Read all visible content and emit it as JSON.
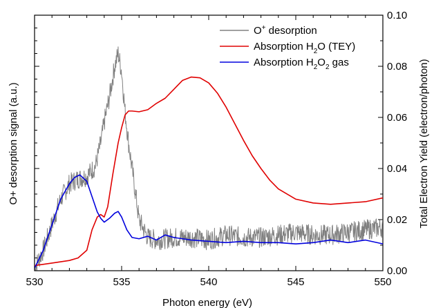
{
  "chart_data": {
    "type": "line",
    "title": "",
    "xlabel": "Photon energy (eV)",
    "ylabel_left": "O+ desorption signal (a.u.)",
    "ylabel_right": "Total Electron Yield (electron/photon)",
    "xlim": [
      530,
      550
    ],
    "ylim_right": [
      0.0,
      0.1
    ],
    "x_ticks": [
      530,
      535,
      540,
      545,
      550
    ],
    "x_tick_labels": [
      "530",
      "535",
      "540",
      "545",
      "550"
    ],
    "y_right_ticks": [
      0.0,
      0.02,
      0.04,
      0.06,
      0.08,
      0.1
    ],
    "y_right_tick_labels": [
      "0.00",
      "0.02",
      "0.04",
      "0.06",
      "0.08",
      "0.10"
    ],
    "legend_position": "top-right",
    "series": [
      {
        "key": "desorption",
        "color": "#808080",
        "axis": "left",
        "x": [
          530.0,
          530.5,
          531.0,
          531.5,
          532.0,
          532.5,
          533.0,
          533.5,
          533.8,
          534.0,
          534.3,
          534.6,
          534.8,
          535.0,
          535.2,
          535.4,
          535.6,
          535.8,
          536.0,
          536.5,
          537.0,
          538.0,
          539.0,
          540.0,
          541.0,
          542.0,
          543.0,
          544.0,
          545.0,
          546.0,
          547.0,
          548.0,
          549.0,
          550.0
        ],
        "y": [
          0.001,
          0.008,
          0.018,
          0.028,
          0.034,
          0.036,
          0.037,
          0.041,
          0.05,
          0.058,
          0.068,
          0.08,
          0.085,
          0.078,
          0.062,
          0.05,
          0.04,
          0.03,
          0.02,
          0.013,
          0.012,
          0.013,
          0.013,
          0.012,
          0.014,
          0.013,
          0.013,
          0.014,
          0.015,
          0.014,
          0.014,
          0.015,
          0.016,
          0.017
        ],
        "noise": 0.004
      },
      {
        "key": "h2o",
        "color": "#e00000",
        "axis": "right",
        "x": [
          530.0,
          531.0,
          532.0,
          532.5,
          533.0,
          533.3,
          533.6,
          533.8,
          534.0,
          534.2,
          534.5,
          534.8,
          535.0,
          535.2,
          535.4,
          535.6,
          536.0,
          536.5,
          537.0,
          537.5,
          538.0,
          538.5,
          539.0,
          539.5,
          540.0,
          540.5,
          541.0,
          541.5,
          542.0,
          542.5,
          543.0,
          543.5,
          544.0,
          545.0,
          546.0,
          547.0,
          548.0,
          549.0,
          550.0
        ],
        "y": [
          0.002,
          0.003,
          0.004,
          0.005,
          0.008,
          0.016,
          0.021,
          0.022,
          0.021,
          0.025,
          0.038,
          0.05,
          0.056,
          0.061,
          0.0625,
          0.0625,
          0.0622,
          0.063,
          0.0655,
          0.0675,
          0.071,
          0.0745,
          0.0758,
          0.0755,
          0.0735,
          0.0695,
          0.064,
          0.0575,
          0.051,
          0.045,
          0.04,
          0.0355,
          0.032,
          0.028,
          0.0265,
          0.026,
          0.0265,
          0.027,
          0.0285
        ]
      },
      {
        "key": "h2o2",
        "color": "#0000dd",
        "axis": "right",
        "x": [
          530.0,
          530.5,
          531.0,
          531.5,
          532.0,
          532.3,
          532.6,
          533.0,
          533.3,
          533.6,
          533.8,
          534.0,
          534.3,
          534.6,
          534.8,
          535.0,
          535.3,
          535.6,
          536.0,
          536.5,
          537.0,
          537.5,
          538.0,
          539.0,
          540.0,
          541.0,
          542.0,
          543.0,
          544.0,
          545.0,
          546.0,
          547.0,
          548.0,
          549.0,
          550.0
        ],
        "y": [
          0.001,
          0.008,
          0.018,
          0.028,
          0.034,
          0.0365,
          0.0375,
          0.035,
          0.029,
          0.023,
          0.0205,
          0.019,
          0.0205,
          0.0225,
          0.0232,
          0.021,
          0.016,
          0.013,
          0.0125,
          0.0135,
          0.012,
          0.014,
          0.013,
          0.012,
          0.0115,
          0.011,
          0.0115,
          0.011,
          0.011,
          0.0105,
          0.011,
          0.012,
          0.011,
          0.012,
          0.0105
        ]
      }
    ]
  },
  "legend": [
    {
      "series_key": "desorption",
      "segments": [
        {
          "text": "O",
          "kind": "normal"
        },
        {
          "text": "+",
          "kind": "sup"
        },
        {
          "text": " desorption",
          "kind": "normal"
        }
      ],
      "color": "#808080"
    },
    {
      "series_key": "h2o",
      "segments": [
        {
          "text": "Absorption H",
          "kind": "normal"
        },
        {
          "text": "2",
          "kind": "sub"
        },
        {
          "text": "O (TEY)",
          "kind": "normal"
        }
      ],
      "color": "#e00000"
    },
    {
      "series_key": "h2o2",
      "segments": [
        {
          "text": "Absorption H",
          "kind": "normal"
        },
        {
          "text": "2",
          "kind": "sub"
        },
        {
          "text": "O",
          "kind": "normal"
        },
        {
          "text": "2",
          "kind": "sub"
        },
        {
          "text": " gas",
          "kind": "normal"
        }
      ],
      "color": "#0000dd"
    }
  ]
}
